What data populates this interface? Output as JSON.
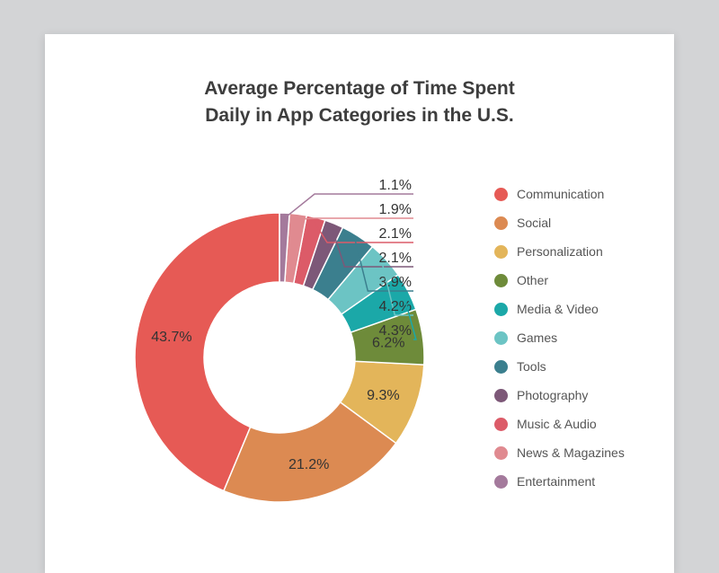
{
  "chart_data": {
    "type": "pie",
    "title_lines": [
      "Average Percentage of Time Spent",
      "Daily in App Categories in the U.S."
    ],
    "legend_position": "right",
    "slices": [
      {
        "label": "Communication",
        "value": 43.7,
        "value_label": "43.7%",
        "color": "#e65a55"
      },
      {
        "label": "Social",
        "value": 21.2,
        "value_label": "21.2%",
        "color": "#dc8a52"
      },
      {
        "label": "Personalization",
        "value": 9.3,
        "value_label": "9.3%",
        "color": "#e3b55a"
      },
      {
        "label": "Other",
        "value": 6.2,
        "value_label": "6.2%",
        "color": "#6e8b3a"
      },
      {
        "label": "Media & Video",
        "value": 4.3,
        "value_label": "4.3%",
        "color": "#1ba8a8"
      },
      {
        "label": "Games",
        "value": 4.2,
        "value_label": "4.2%",
        "color": "#6cc4c4"
      },
      {
        "label": "Tools",
        "value": 3.9,
        "value_label": "3.9%",
        "color": "#3b7f8e"
      },
      {
        "label": "Photography",
        "value": 2.1,
        "value_label": "2.1%",
        "color": "#7d5878"
      },
      {
        "label": "Music & Audio",
        "value": 2.1,
        "value_label": "2.1%",
        "color": "#dc5b68"
      },
      {
        "label": "News & Magazines",
        "value": 1.9,
        "value_label": "1.9%",
        "color": "#e08a90"
      },
      {
        "label": "Entertainment",
        "value": 1.1,
        "value_label": "1.1%",
        "color": "#a47a9c"
      }
    ]
  }
}
